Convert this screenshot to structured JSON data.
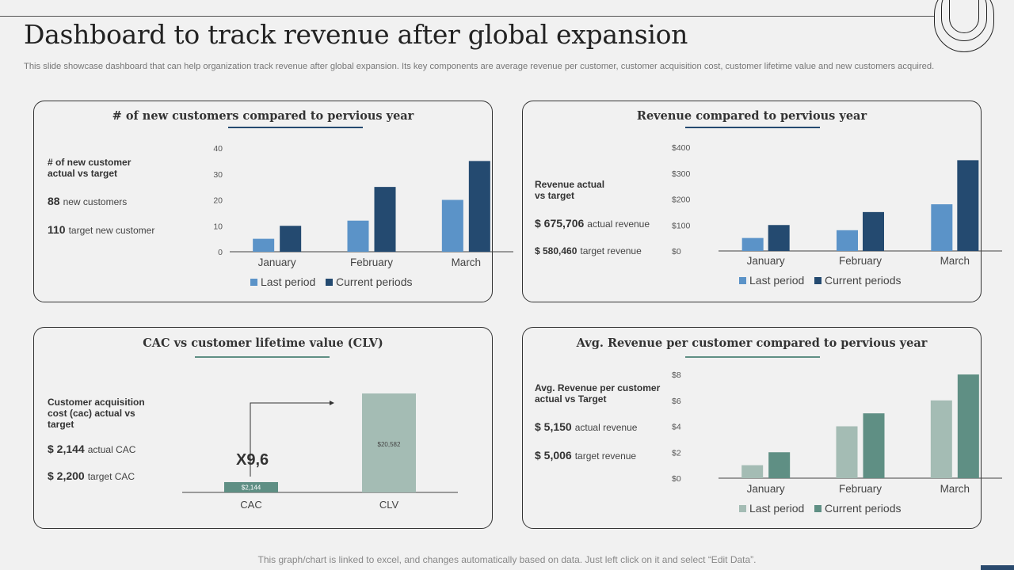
{
  "header": {
    "title": "Dashboard to track revenue after global expansion",
    "subtitle": "This slide showcase dashboard that can help organization track revenue after global expansion. Its key components are average revenue per customer, customer acquisition cost, customer lifetime value and new customers acquired."
  },
  "panel1": {
    "title": "# of new customers compared to pervious year",
    "label": "# of new customer actual vs target",
    "actual_value": "88",
    "actual_text": "new customers",
    "target_value": "110",
    "target_text": "target new customer"
  },
  "panel2": {
    "title": "Revenue compared to pervious year",
    "label": "Revenue actual vs target",
    "actual_value": "$ 675,706",
    "actual_text": "actual revenue",
    "target_value": "$ 580,460",
    "target_text": "target revenue"
  },
  "panel3": {
    "title": "CAC vs customer lifetime value (CLV)",
    "label": "Customer acquisition cost (cac) actual vs target",
    "actual_value": "$ 2,144",
    "actual_text": "actual CAC",
    "target_value": "$ 2,200",
    "target_text": "target CAC",
    "multiplier": "X9,6"
  },
  "panel4": {
    "title": "Avg. Revenue per customer compared to pervious year",
    "label": "Avg. Revenue per customer actual vs Target",
    "actual_value": "$ 5,150",
    "actual_text": "actual revenue",
    "target_value": "$ 5,006",
    "target_text": "target revenue"
  },
  "footer": "This graph/chart is linked to excel, and changes automatically based on data. Just left click on it and select “Edit Data”.",
  "colors": {
    "blue_last": "#5b93c8",
    "blue_current": "#244a70",
    "green_last": "#a4bcb4",
    "green_current": "#5f8f84",
    "underline_blue": "#244a70",
    "underline_green": "#5f8f84"
  },
  "chart_data": [
    {
      "id": "customers",
      "type": "bar",
      "categories": [
        "January",
        "February",
        "March"
      ],
      "series": [
        {
          "name": "Last period",
          "values": [
            5,
            12,
            20
          ]
        },
        {
          "name": "Current periods",
          "values": [
            10,
            25,
            35
          ]
        }
      ],
      "yticks": [
        "0",
        "10",
        "20",
        "30",
        "40"
      ],
      "ylim": [
        0,
        40
      ],
      "legend": "bottom"
    },
    {
      "id": "revenue",
      "type": "bar",
      "categories": [
        "January",
        "February",
        "March"
      ],
      "series": [
        {
          "name": "Last period",
          "values": [
            50,
            80,
            180
          ]
        },
        {
          "name": "Current periods",
          "values": [
            100,
            150,
            350
          ]
        }
      ],
      "yticks": [
        "$0",
        "$100",
        "$200",
        "$300",
        "$400"
      ],
      "ylim": [
        0,
        400
      ],
      "legend": "bottom"
    },
    {
      "id": "cac_clv",
      "type": "bar",
      "categories": [
        "CAC",
        "CLV"
      ],
      "values": [
        2144,
        20582
      ],
      "value_labels": [
        "$2,144",
        "$20,582"
      ],
      "colors": [
        "#5f8f84",
        "#a4bcb4"
      ],
      "ylim": [
        0,
        20582
      ]
    },
    {
      "id": "avg_revenue",
      "type": "bar",
      "categories": [
        "January",
        "February",
        "March"
      ],
      "series": [
        {
          "name": "Last period",
          "values": [
            1,
            4,
            6
          ]
        },
        {
          "name": "Current periods",
          "values": [
            2,
            5,
            8
          ]
        }
      ],
      "yticks": [
        "$0",
        "$2",
        "$4",
        "$6",
        "$8"
      ],
      "ylim": [
        0,
        8
      ],
      "legend": "bottom"
    }
  ]
}
